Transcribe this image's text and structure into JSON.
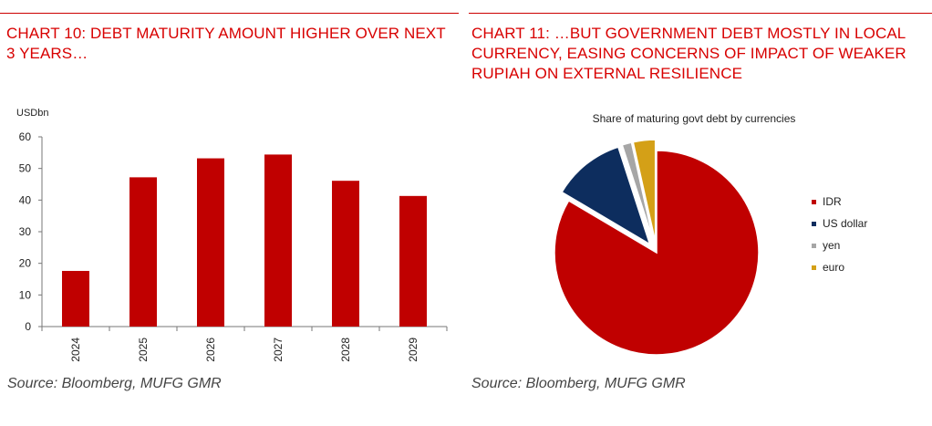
{
  "left_panel": {
    "title": "CHART 10: DEBT MATURITY AMOUNT HIGHER OVER NEXT 3 YEARS…",
    "source": "Source: Bloomberg, MUFG GMR"
  },
  "right_panel": {
    "title": "CHART 11: …BUT GOVERNMENT DEBT MOSTLY IN LOCAL CURRENCY, EASING CONCERNS OF IMPACT OF WEAKER RUPIAH ON EXTERNAL RESILIENCE",
    "source": "Source: Bloomberg, MUFG GMR"
  },
  "chart_data": [
    {
      "type": "bar",
      "title": "",
      "unit_label": "USDbn",
      "xlabel": "",
      "ylabel": "",
      "categories": [
        "2024",
        "2025",
        "2026",
        "2027",
        "2028",
        "2029"
      ],
      "values": [
        17.6,
        47.2,
        53.2,
        54.4,
        46.1,
        41.3
      ],
      "ylim": [
        0,
        60
      ],
      "yticks": [
        0,
        10,
        20,
        30,
        40,
        50,
        60
      ],
      "bar_color": "#c00000",
      "grid": false
    },
    {
      "type": "pie",
      "title": "Share of maturing govt debt by currencies",
      "labels": [
        "IDR",
        "US dollar",
        "yen",
        "euro"
      ],
      "values": [
        83.5,
        11.5,
        1.5,
        3.5
      ],
      "colors": [
        "#c00000",
        "#0d2d5e",
        "#a6a6a6",
        "#d4a017"
      ],
      "exploded": [
        false,
        true,
        true,
        true
      ],
      "legend_position": "right"
    }
  ]
}
